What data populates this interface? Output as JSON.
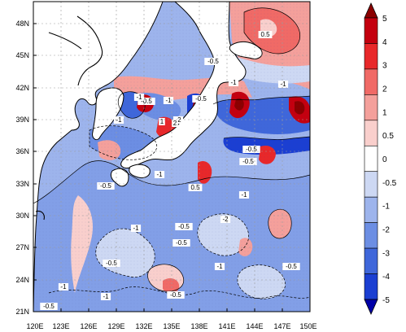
{
  "map": {
    "lat_ticks": [
      "48N",
      "45N",
      "42N",
      "39N",
      "36N",
      "33N",
      "30N",
      "27N",
      "24N",
      "21N"
    ],
    "lon_ticks": [
      "120E",
      "123E",
      "126E",
      "129E",
      "132E",
      "135E",
      "138E",
      "141E",
      "144E",
      "147E",
      "150E"
    ],
    "contour_labels": [
      "0.5",
      "-0.5",
      "-1",
      "-2",
      "1",
      "2",
      "-0.5",
      "-1",
      "-0.5",
      "-1",
      "-0.5",
      "-0.5",
      "-1",
      "-1",
      "-0.5",
      "-1",
      "0.5",
      "-1",
      "-2",
      "-0.5",
      "-1",
      "-0.5",
      "-0.5",
      "-1",
      "-0.5",
      "-0.5",
      "-1",
      "-1",
      "-0.5"
    ]
  },
  "colorbar": {
    "levels": [
      "5",
      "4",
      "3",
      "2",
      "1",
      "0.5",
      "0",
      "-0.5",
      "-1",
      "-2",
      "-3",
      "-4",
      "-5"
    ],
    "colors": [
      "#8b0000",
      "#c4000f",
      "#e8282a",
      "#f06a66",
      "#f4a09b",
      "#f9cfcc",
      "#ffffff",
      "#cdd8f3",
      "#9db4ec",
      "#6c8ee3",
      "#3f67da",
      "#1b3fd2",
      "#0000a8"
    ]
  }
}
